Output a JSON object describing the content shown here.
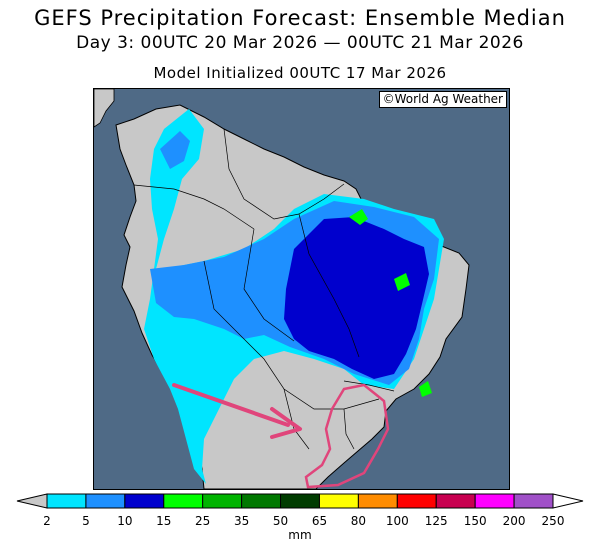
{
  "header": {
    "title": "GEFS Precipitation Forecast: Ensemble Median",
    "valid_period": "Day 3: 00UTC 20 Mar 2026 — 00UTC 21 Mar 2026",
    "init_time": "Model Initialized 00UTC 17 Mar 2026"
  },
  "map": {
    "credit": "©World Ag Weather",
    "ocean_color": "#4f6a86",
    "land_color": "#c8c8c8"
  },
  "annotation": {
    "arrow_color": "#e0457b",
    "outline_color": "#e0457b"
  },
  "colorbar": {
    "unit": "mm",
    "tick_labels": [
      "2",
      "5",
      "10",
      "15",
      "25",
      "35",
      "50",
      "65",
      "80",
      "100",
      "125",
      "150",
      "200",
      "250"
    ],
    "below_color": "#c8c8c8",
    "colors": [
      "#00e5ff",
      "#1e90ff",
      "#0000cd",
      "#00ff00",
      "#00b400",
      "#007800",
      "#003c00",
      "#ffff00",
      "#ff8c00",
      "#ff0000",
      "#c80050",
      "#ff00ff",
      "#a050c8"
    ],
    "above_color": "#ffffff"
  }
}
